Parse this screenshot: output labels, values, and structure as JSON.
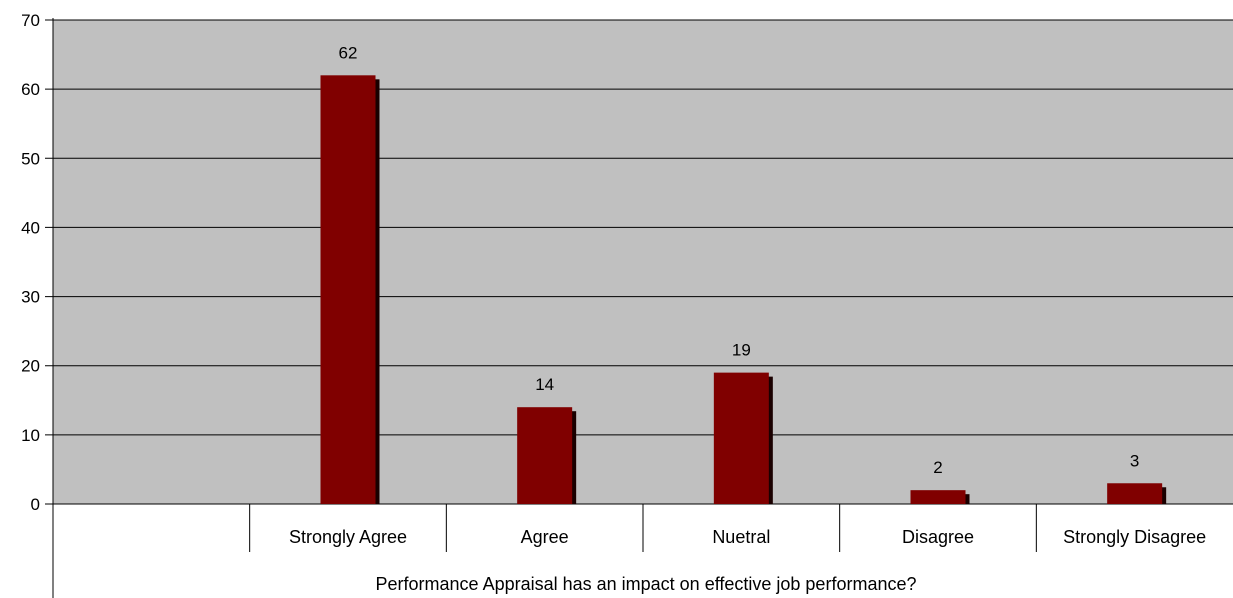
{
  "chart_data": {
    "type": "bar",
    "categories": [
      "",
      "Strongly Agree",
      "Agree",
      "Nuetral",
      "Disagree",
      "Strongly Disagree"
    ],
    "values": [
      null,
      62,
      14,
      19,
      2,
      3
    ],
    "data_labels": [
      "",
      "62",
      "14",
      "19",
      "2",
      "3"
    ],
    "y_ticks": [
      "0",
      "10",
      "20",
      "30",
      "40",
      "50",
      "60",
      "70"
    ],
    "ylim": [
      0,
      70
    ],
    "xlabel": "Performance Appraisal has an impact on effective job performance?",
    "ylabel": "",
    "title": "",
    "grid": true,
    "legend": "none",
    "colors": {
      "plot_background": "#c0c0c0",
      "bar_fill": "#800000",
      "bar_shadow": "#1a0000",
      "gridline": "#000000"
    }
  }
}
